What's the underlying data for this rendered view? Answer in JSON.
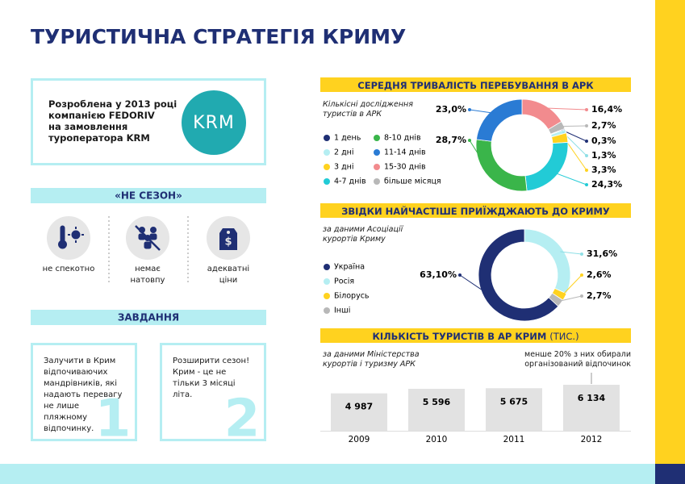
{
  "title": "ТУРИСТИЧНА СТРАТЕГІЯ КРИМУ",
  "intro": {
    "lines": [
      "Розроблена у 2013 році",
      "компанією FEDORIV",
      "на замовлення",
      "туроператора KRM"
    ],
    "logo": "KRM"
  },
  "season": {
    "title": "«НЕ СЕЗОН»",
    "items": [
      "не спекотно",
      "немає натовпу",
      "адекватні ціни"
    ]
  },
  "tasks": {
    "title": "ЗАВДАННЯ",
    "items": [
      {
        "text": "Залучити в Крим відпочиваючих мандрівників, які надають перевагу не лише пляжному відпочинку.",
        "number": "1"
      },
      {
        "text": "Розширити сезон! Крим - це не тільки 3 місяці літа.",
        "number": "2"
      }
    ]
  },
  "chart_data": [
    {
      "type": "donut",
      "title": "СЕРЕДНЯ ТРИВАЛІСТЬ ПЕРЕБУВАННЯ В АРК",
      "subtitle": "Кількісні дослідження туристів в АРК",
      "categories": [
        "1 день",
        "2 дні",
        "3 дні",
        "4-7 днів",
        "8-10 днів",
        "11-14 днів",
        "15-30 днів",
        "більше місяця"
      ],
      "values": [
        0.3,
        1.3,
        3.3,
        24.3,
        28.7,
        23.0,
        16.4,
        2.7
      ],
      "value_labels": [
        "0,3%",
        "1,3%",
        "3,3%",
        "24,3%",
        "28,7%",
        "23,0%",
        "16,4%",
        "2,7%"
      ],
      "colors": [
        "#1f2f74",
        "#b5eef2",
        "#ffd21f",
        "#22cbd6",
        "#3ab54a",
        "#2a7bd4",
        "#f28b8e",
        "#b8b8b8"
      ]
    },
    {
      "type": "donut",
      "title": "ЗВІДКИ НАЙЧАСТІШЕ ПРИЇЖДЖАЮТЬ ДО КРИМУ",
      "subtitle": "за даними Асоціації курортів Криму",
      "categories": [
        "Україна",
        "Росія",
        "Білорусь",
        "Інші"
      ],
      "values": [
        63.1,
        31.6,
        2.6,
        2.7
      ],
      "value_labels": [
        "63,10%",
        "31,6%",
        "2,6%",
        "2,7%"
      ],
      "colors": [
        "#1f2f74",
        "#b5eef2",
        "#ffd21f",
        "#b8b8b8"
      ]
    },
    {
      "type": "bar",
      "title": "КІЛЬКІСТЬ ТУРИСТІВ В АР КРИМ",
      "title_unit": "(ТИС.)",
      "subtitle": "за даними Міністерства курортів і туризму АРК",
      "annotation": "менше 20% з них обирали організований відпочинок",
      "categories": [
        "2009",
        "2010",
        "2011",
        "2012"
      ],
      "values": [
        4987,
        5596,
        5675,
        6134
      ],
      "value_labels": [
        "4 987",
        "5 596",
        "5 675",
        "6 134"
      ],
      "color": "#e2e2e2"
    }
  ]
}
